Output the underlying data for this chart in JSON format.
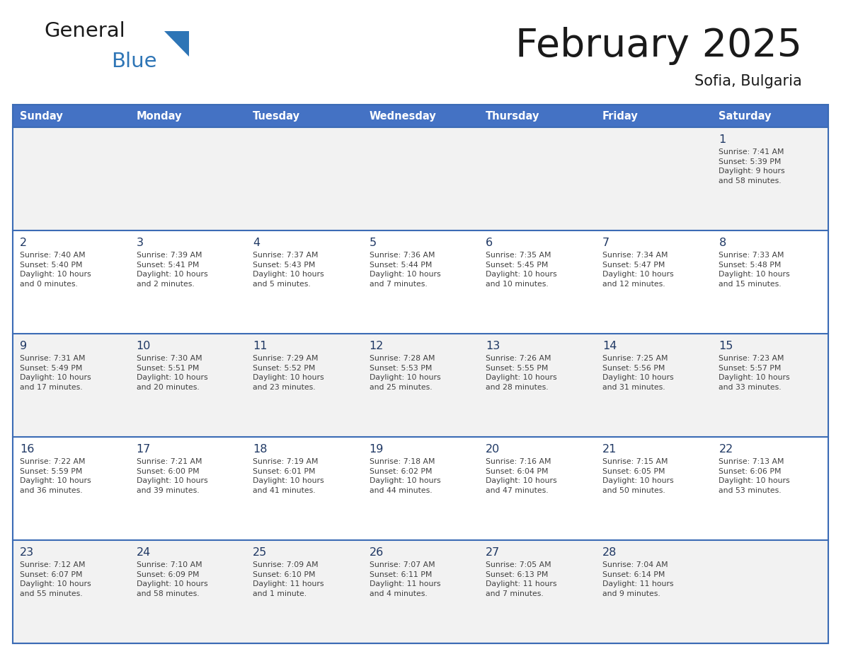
{
  "title": "February 2025",
  "subtitle": "Sofia, Bulgaria",
  "days_of_week": [
    "Sunday",
    "Monday",
    "Tuesday",
    "Wednesday",
    "Thursday",
    "Friday",
    "Saturday"
  ],
  "header_bg": "#4472C4",
  "header_text": "#FFFFFF",
  "cell_bg_odd": "#F2F2F2",
  "cell_bg_even": "#FFFFFF",
  "border_color": "#3B6BB5",
  "day_num_color": "#1F3864",
  "info_color": "#404040",
  "title_color": "#1a1a1a",
  "logo_general_color": "#1a1a1a",
  "logo_blue_color": "#2E75B6",
  "logo_triangle_color": "#2E75B6",
  "weeks": [
    {
      "days": [
        {
          "num": "",
          "info": ""
        },
        {
          "num": "",
          "info": ""
        },
        {
          "num": "",
          "info": ""
        },
        {
          "num": "",
          "info": ""
        },
        {
          "num": "",
          "info": ""
        },
        {
          "num": "",
          "info": ""
        },
        {
          "num": "1",
          "info": "Sunrise: 7:41 AM\nSunset: 5:39 PM\nDaylight: 9 hours\nand 58 minutes."
        }
      ]
    },
    {
      "days": [
        {
          "num": "2",
          "info": "Sunrise: 7:40 AM\nSunset: 5:40 PM\nDaylight: 10 hours\nand 0 minutes."
        },
        {
          "num": "3",
          "info": "Sunrise: 7:39 AM\nSunset: 5:41 PM\nDaylight: 10 hours\nand 2 minutes."
        },
        {
          "num": "4",
          "info": "Sunrise: 7:37 AM\nSunset: 5:43 PM\nDaylight: 10 hours\nand 5 minutes."
        },
        {
          "num": "5",
          "info": "Sunrise: 7:36 AM\nSunset: 5:44 PM\nDaylight: 10 hours\nand 7 minutes."
        },
        {
          "num": "6",
          "info": "Sunrise: 7:35 AM\nSunset: 5:45 PM\nDaylight: 10 hours\nand 10 minutes."
        },
        {
          "num": "7",
          "info": "Sunrise: 7:34 AM\nSunset: 5:47 PM\nDaylight: 10 hours\nand 12 minutes."
        },
        {
          "num": "8",
          "info": "Sunrise: 7:33 AM\nSunset: 5:48 PM\nDaylight: 10 hours\nand 15 minutes."
        }
      ]
    },
    {
      "days": [
        {
          "num": "9",
          "info": "Sunrise: 7:31 AM\nSunset: 5:49 PM\nDaylight: 10 hours\nand 17 minutes."
        },
        {
          "num": "10",
          "info": "Sunrise: 7:30 AM\nSunset: 5:51 PM\nDaylight: 10 hours\nand 20 minutes."
        },
        {
          "num": "11",
          "info": "Sunrise: 7:29 AM\nSunset: 5:52 PM\nDaylight: 10 hours\nand 23 minutes."
        },
        {
          "num": "12",
          "info": "Sunrise: 7:28 AM\nSunset: 5:53 PM\nDaylight: 10 hours\nand 25 minutes."
        },
        {
          "num": "13",
          "info": "Sunrise: 7:26 AM\nSunset: 5:55 PM\nDaylight: 10 hours\nand 28 minutes."
        },
        {
          "num": "14",
          "info": "Sunrise: 7:25 AM\nSunset: 5:56 PM\nDaylight: 10 hours\nand 31 minutes."
        },
        {
          "num": "15",
          "info": "Sunrise: 7:23 AM\nSunset: 5:57 PM\nDaylight: 10 hours\nand 33 minutes."
        }
      ]
    },
    {
      "days": [
        {
          "num": "16",
          "info": "Sunrise: 7:22 AM\nSunset: 5:59 PM\nDaylight: 10 hours\nand 36 minutes."
        },
        {
          "num": "17",
          "info": "Sunrise: 7:21 AM\nSunset: 6:00 PM\nDaylight: 10 hours\nand 39 minutes."
        },
        {
          "num": "18",
          "info": "Sunrise: 7:19 AM\nSunset: 6:01 PM\nDaylight: 10 hours\nand 41 minutes."
        },
        {
          "num": "19",
          "info": "Sunrise: 7:18 AM\nSunset: 6:02 PM\nDaylight: 10 hours\nand 44 minutes."
        },
        {
          "num": "20",
          "info": "Sunrise: 7:16 AM\nSunset: 6:04 PM\nDaylight: 10 hours\nand 47 minutes."
        },
        {
          "num": "21",
          "info": "Sunrise: 7:15 AM\nSunset: 6:05 PM\nDaylight: 10 hours\nand 50 minutes."
        },
        {
          "num": "22",
          "info": "Sunrise: 7:13 AM\nSunset: 6:06 PM\nDaylight: 10 hours\nand 53 minutes."
        }
      ]
    },
    {
      "days": [
        {
          "num": "23",
          "info": "Sunrise: 7:12 AM\nSunset: 6:07 PM\nDaylight: 10 hours\nand 55 minutes."
        },
        {
          "num": "24",
          "info": "Sunrise: 7:10 AM\nSunset: 6:09 PM\nDaylight: 10 hours\nand 58 minutes."
        },
        {
          "num": "25",
          "info": "Sunrise: 7:09 AM\nSunset: 6:10 PM\nDaylight: 11 hours\nand 1 minute."
        },
        {
          "num": "26",
          "info": "Sunrise: 7:07 AM\nSunset: 6:11 PM\nDaylight: 11 hours\nand 4 minutes."
        },
        {
          "num": "27",
          "info": "Sunrise: 7:05 AM\nSunset: 6:13 PM\nDaylight: 11 hours\nand 7 minutes."
        },
        {
          "num": "28",
          "info": "Sunrise: 7:04 AM\nSunset: 6:14 PM\nDaylight: 11 hours\nand 9 minutes."
        },
        {
          "num": "",
          "info": ""
        }
      ]
    }
  ]
}
